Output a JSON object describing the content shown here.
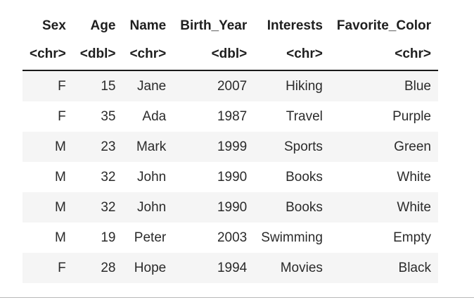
{
  "table": {
    "columns": [
      {
        "name": "Sex",
        "type": "<chr>"
      },
      {
        "name": "Age",
        "type": "<dbl>"
      },
      {
        "name": "Name",
        "type": "<chr>"
      },
      {
        "name": "Birth_Year",
        "type": "<dbl>"
      },
      {
        "name": "Interests",
        "type": "<chr>"
      },
      {
        "name": "Favorite_Color",
        "type": "<chr>"
      }
    ],
    "rows": [
      [
        "F",
        "15",
        "Jane",
        "2007",
        "Hiking",
        "Blue"
      ],
      [
        "F",
        "35",
        "Ada",
        "1987",
        "Travel",
        "Purple"
      ],
      [
        "M",
        "23",
        "Mark",
        "1999",
        "Sports",
        "Green"
      ],
      [
        "M",
        "32",
        "John",
        "1990",
        "Books",
        "White"
      ],
      [
        "M",
        "32",
        "John",
        "1990",
        "Books",
        "White"
      ],
      [
        "M",
        "19",
        "Peter",
        "2003",
        "Swimming",
        "Empty"
      ],
      [
        "F",
        "28",
        "Hope",
        "1994",
        "Movies",
        "Black"
      ]
    ]
  }
}
